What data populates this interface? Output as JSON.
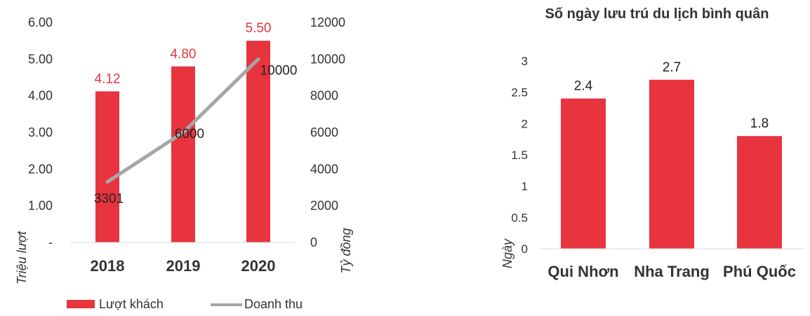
{
  "colors": {
    "bar": "#e8343e",
    "line": "#a6a6a6",
    "axis": "#d9d9d9"
  },
  "chart_data": [
    {
      "type": "bar",
      "categories": [
        "2018",
        "2019",
        "2020"
      ],
      "series": [
        {
          "name": "Lượt khách",
          "type": "bar",
          "axis": "left",
          "values": [
            4.12,
            4.8,
            5.5
          ],
          "labels": [
            "4.12",
            "4.80",
            "5.50"
          ]
        },
        {
          "name": "Doanh thu",
          "type": "line",
          "axis": "right",
          "values": [
            3301,
            6000,
            10000
          ],
          "labels": [
            "3301",
            "6000",
            "10000"
          ]
        }
      ],
      "y_left": {
        "label": "Triệu lượt",
        "ylim": [
          0,
          6
        ],
        "ticks": [
          "-",
          "1.00",
          "2.00",
          "3.00",
          "4.00",
          "5.00",
          "6.00"
        ],
        "tick_values": [
          0,
          1,
          2,
          3,
          4,
          5,
          6
        ]
      },
      "y_right": {
        "label": "Tỷ đồng",
        "ylim": [
          0,
          12000
        ],
        "ticks": [
          "0",
          "2000",
          "4000",
          "6000",
          "8000",
          "10000",
          "12000"
        ],
        "tick_values": [
          0,
          2000,
          4000,
          6000,
          8000,
          10000,
          12000
        ]
      },
      "legend": {
        "placement": "bottom",
        "items": [
          "Lượt khách",
          "Doanh thu"
        ]
      },
      "grid": false
    },
    {
      "type": "bar",
      "title": "Số ngày lưu trú du lịch bình quân",
      "categories": [
        "Qui Nhơn",
        "Nha Trang",
        "Phú Quốc"
      ],
      "values": [
        2.4,
        2.7,
        1.8
      ],
      "labels": [
        "2.4",
        "2.7",
        "1.8"
      ],
      "ylabel": "Ngày",
      "ylim": [
        0,
        3
      ],
      "ticks": [
        "0",
        "0.5",
        "1",
        "1.5",
        "2",
        "2.5",
        "3"
      ],
      "tick_values": [
        0,
        0.5,
        1,
        1.5,
        2,
        2.5,
        3
      ],
      "grid": false
    }
  ]
}
